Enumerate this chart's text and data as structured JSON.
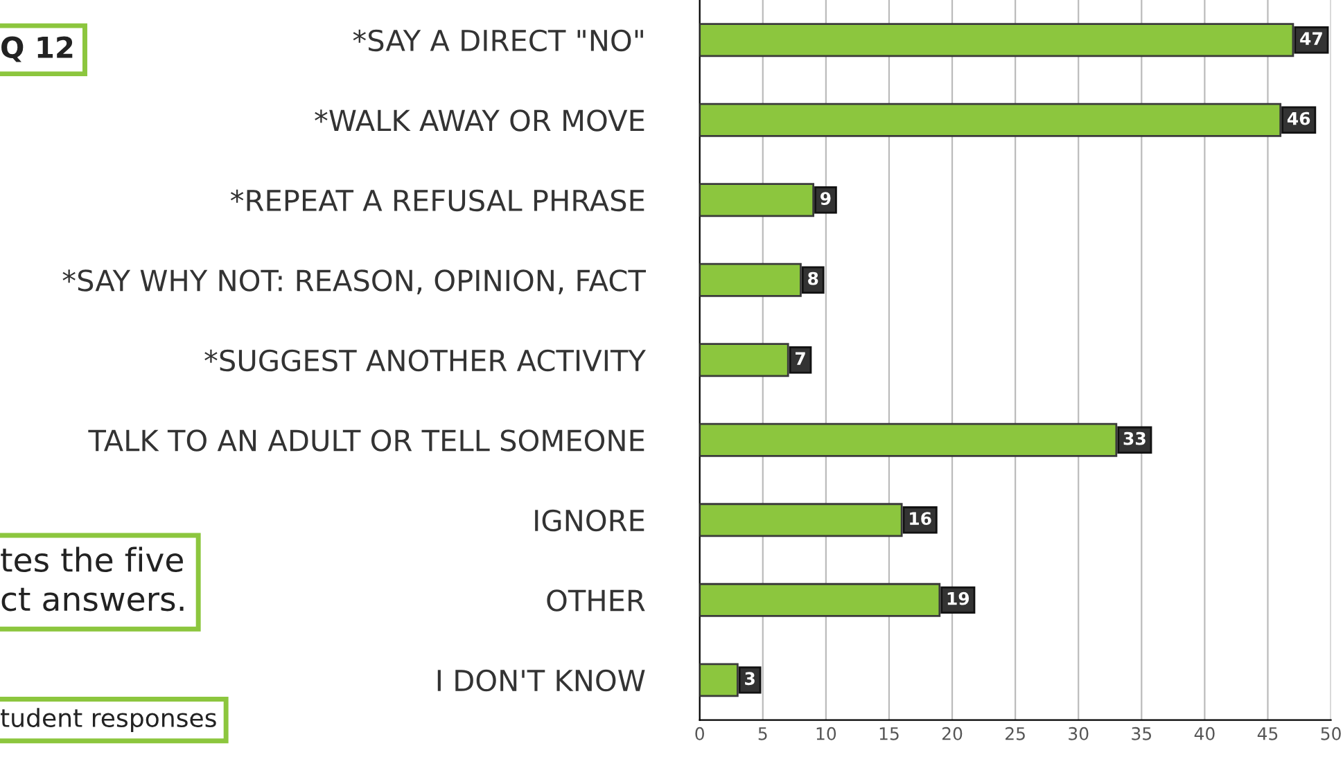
{
  "chart_data": {
    "type": "bar",
    "orientation": "horizontal",
    "categories": [
      "*SAY A DIRECT \"NO\"",
      "*WALK AWAY OR MOVE",
      "*REPEAT A REFUSAL PHRASE",
      "*SAY WHY NOT: REASON, OPINION, FACT",
      "*SUGGEST ANOTHER ACTIVITY",
      "TALK TO AN ADULT OR TELL SOMEONE",
      "IGNORE",
      "OTHER",
      "I DON'T KNOW"
    ],
    "values": [
      47,
      46,
      9,
      8,
      7,
      33,
      16,
      19,
      3
    ],
    "color": "#8cc63e",
    "xlim": [
      0,
      50
    ],
    "xticks": [
      0,
      5,
      10,
      15,
      20,
      25,
      30,
      35,
      40,
      45,
      50
    ],
    "grid": "x",
    "data_labels": true,
    "annotations": [
      "Q 12",
      "tes the five\nct answers.",
      "tudent responses"
    ]
  }
}
